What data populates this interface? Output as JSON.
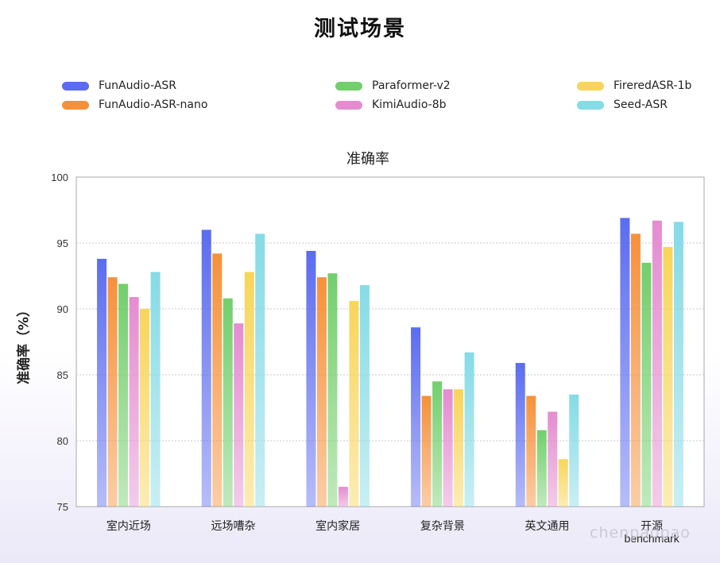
{
  "page_title": "测试场景",
  "watermark": "chenpaopao",
  "colors": {
    "FunAudio-ASR": "#5b6cf0",
    "FunAudio-ASR-nano": "#f5913a",
    "Paraformer-v2": "#72cf6c",
    "KimiAudio-8b": "#e58cd0",
    "FireredASR-1b": "#f8d55a",
    "Seed-ASR": "#85dbe6"
  },
  "chart_data": {
    "type": "bar",
    "title": "准确率",
    "xlabel": "",
    "ylabel": "准确率（%）",
    "ylim": [
      75,
      100
    ],
    "yticks": [
      75,
      80,
      85,
      90,
      95,
      100
    ],
    "grid": true,
    "legend_position": "top",
    "categories": [
      "室内近场",
      "远场嘈杂",
      "室内家居",
      "复杂背景",
      "英文通用",
      "开源\nbenchmark"
    ],
    "series": [
      {
        "name": "FunAudio-ASR",
        "values": [
          93.8,
          96.0,
          94.4,
          88.6,
          85.9,
          96.9
        ]
      },
      {
        "name": "FunAudio-ASR-nano",
        "values": [
          92.4,
          94.2,
          92.4,
          83.4,
          83.4,
          95.7
        ]
      },
      {
        "name": "Paraformer-v2",
        "values": [
          91.9,
          90.8,
          92.7,
          84.5,
          80.8,
          93.5
        ]
      },
      {
        "name": "KimiAudio-8b",
        "values": [
          90.9,
          88.9,
          76.5,
          83.9,
          82.2,
          96.7
        ]
      },
      {
        "name": "FireredASR-1b",
        "values": [
          90.0,
          92.8,
          90.6,
          83.9,
          78.6,
          94.7
        ]
      },
      {
        "name": "Seed-ASR",
        "values": [
          92.8,
          95.7,
          91.8,
          86.7,
          83.5,
          96.6
        ]
      }
    ]
  }
}
